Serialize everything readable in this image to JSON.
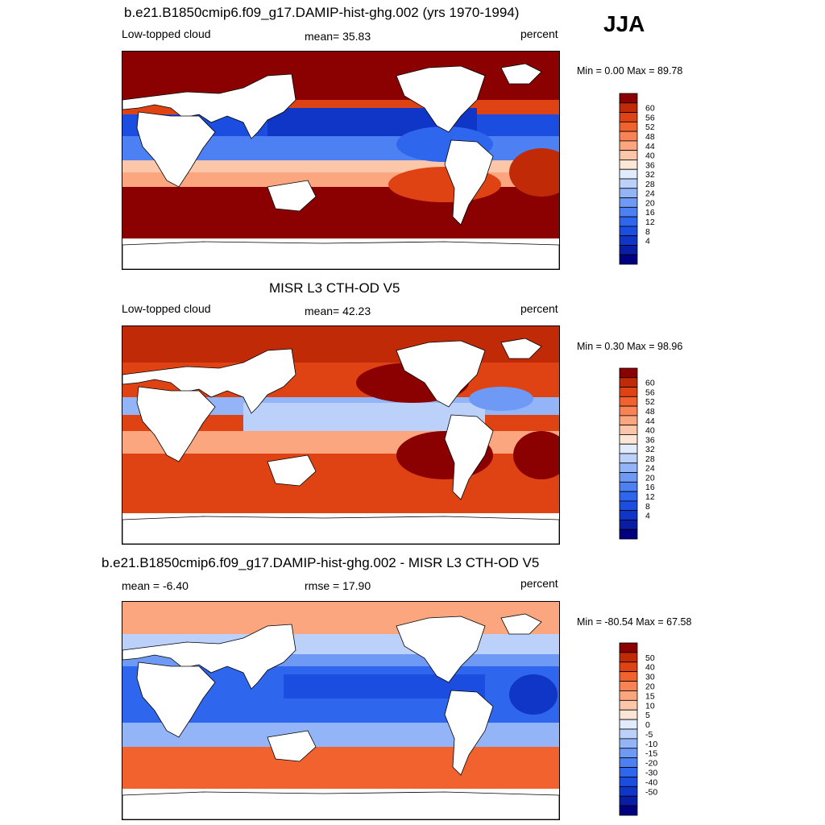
{
  "season_label": "JJA",
  "panels": [
    {
      "title": "b.e21.B1850cmip6.f09_g17.DAMIP-hist-ghg.002 (yrs 1970-1994)",
      "left_label": "Low-topped cloud",
      "center_label": "mean=  35.83",
      "right_label": "percent",
      "minmax": "Min =   0.00 Max =  89.78",
      "colorbar": {
        "colors": [
          "#000080",
          "#0a1ea5",
          "#1036c8",
          "#1a4de0",
          "#2f66ee",
          "#4d80f2",
          "#6e9af6",
          "#93b5f8",
          "#bcd1fa",
          "#e0ebfc",
          "#fde6d6",
          "#fcc7a9",
          "#fba67e",
          "#f88455",
          "#f2622f",
          "#df4314",
          "#c02a06",
          "#8b0000"
        ],
        "labels": [
          "4",
          "8",
          "12",
          "16",
          "20",
          "24",
          "28",
          "32",
          "36",
          "40",
          "44",
          "48",
          "52",
          "56",
          "60"
        ]
      }
    },
    {
      "title": "MISR L3 CTH-OD V5",
      "left_label": "Low-topped cloud",
      "center_label": "mean=  42.23",
      "right_label": "percent",
      "minmax": "Min =   0.30 Max =  98.96",
      "colorbar": {
        "colors": [
          "#000080",
          "#0a1ea5",
          "#1036c8",
          "#1a4de0",
          "#2f66ee",
          "#4d80f2",
          "#6e9af6",
          "#93b5f8",
          "#bcd1fa",
          "#e0ebfc",
          "#fde6d6",
          "#fcc7a9",
          "#fba67e",
          "#f88455",
          "#f2622f",
          "#df4314",
          "#c02a06",
          "#8b0000"
        ],
        "labels": [
          "4",
          "8",
          "12",
          "16",
          "20",
          "24",
          "28",
          "32",
          "36",
          "40",
          "44",
          "48",
          "52",
          "56",
          "60"
        ]
      }
    },
    {
      "title": "b.e21.B1850cmip6.f09_g17.DAMIP-hist-ghg.002 - MISR L3 CTH-OD V5",
      "left_label": "mean =  -6.40",
      "center_label": "rmse =  17.90",
      "right_label": "percent",
      "minmax": "Min = -80.54 Max =  67.58",
      "colorbar": {
        "colors": [
          "#000080",
          "#0a1ea5",
          "#1036c8",
          "#1a4de0",
          "#2f66ee",
          "#4d80f2",
          "#6e9af6",
          "#93b5f8",
          "#bcd1fa",
          "#e0ebfc",
          "#fde6d6",
          "#fcc7a9",
          "#fba67e",
          "#f88455",
          "#f2622f",
          "#df4314",
          "#c02a06",
          "#8b0000"
        ],
        "labels": [
          "-50",
          "-40",
          "-30",
          "-20",
          "-15",
          "-10",
          "-5",
          "0",
          "5",
          "10",
          "15",
          "20",
          "30",
          "40",
          "50"
        ]
      }
    }
  ]
}
